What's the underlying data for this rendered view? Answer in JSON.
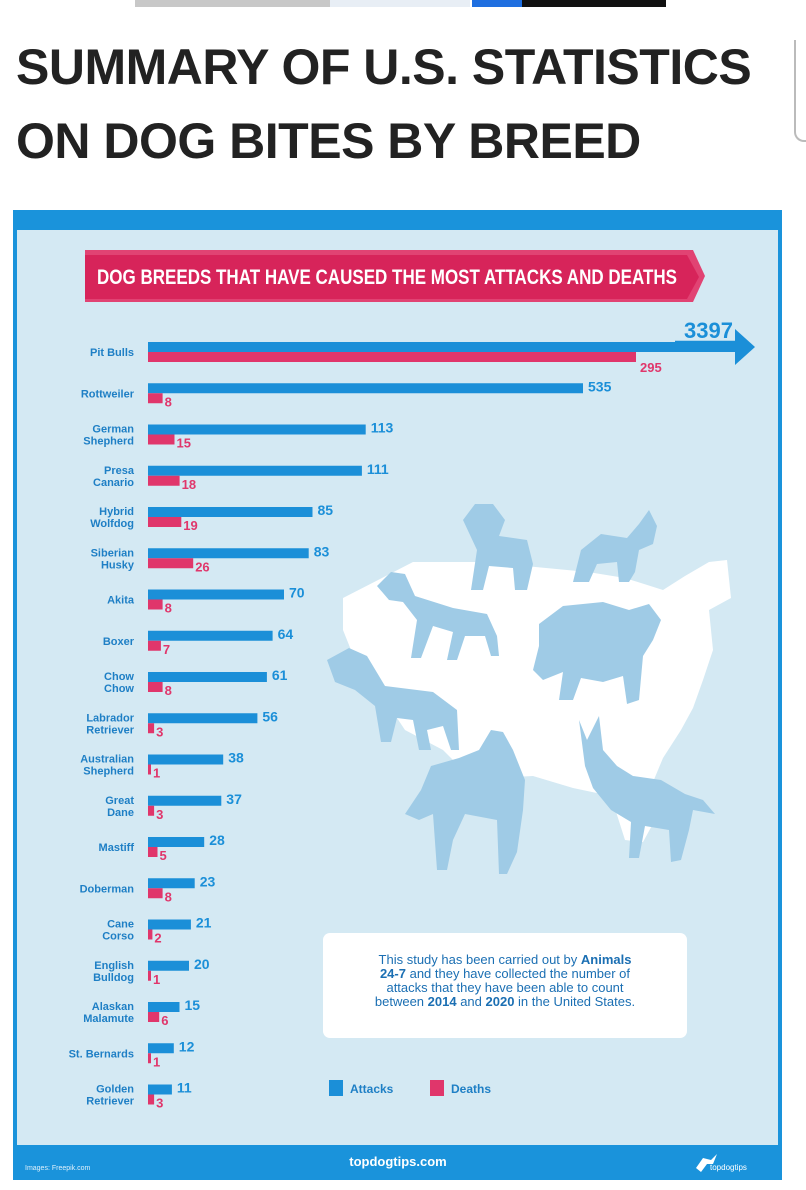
{
  "page": {
    "title_line1": "SUMMARY OF U.S. STATISTICS",
    "title_line2": "ON DOG BITES BY BREED"
  },
  "infographic": {
    "banner": "DOG BREEDS THAT HAVE CAUSED THE MOST ATTACKS AND DEATHS",
    "note": {
      "parts": [
        {
          "text": "This study has been carried out by ",
          "bold": false
        },
        {
          "text": "Animals",
          "bold": true
        },
        {
          "text": "24-7",
          "bold": true
        },
        {
          "text": " and they have collected the number of",
          "bold": false
        },
        {
          "text": "attacks that they have been able to count",
          "bold": false
        },
        {
          "text": "between ",
          "bold": false
        },
        {
          "text": "2014",
          "bold": true
        },
        {
          "text": " and ",
          "bold": false
        },
        {
          "text": "2020",
          "bold": true
        },
        {
          "text": " in the United States.",
          "bold": false
        }
      ]
    },
    "footer": {
      "site": "topdogtips.com",
      "credit": "Images: Freepik.com",
      "logo_text": "topdogtips"
    },
    "colors": {
      "attacks": "#1b8fd8",
      "deaths": "#e0366b",
      "background": "#d4e9f3",
      "frame": "#1a93db",
      "silhouette": "#9fcbe6",
      "map": "#ffffff",
      "label": "#1e7fc5"
    }
  },
  "chart_data": {
    "type": "bar",
    "orientation": "horizontal",
    "title": "DOG BREEDS THAT HAVE CAUSED THE MOST ATTACKS AND DEATHS",
    "categories": [
      [
        "Pit Bulls"
      ],
      [
        "Rottweiler"
      ],
      [
        "German",
        "Shepherd"
      ],
      [
        "Presa",
        "Canario"
      ],
      [
        "Hybrid",
        "Wolfdog"
      ],
      [
        "Siberian",
        "Husky"
      ],
      [
        "Akita"
      ],
      [
        "Boxer"
      ],
      [
        "Chow",
        "Chow"
      ],
      [
        "Labrador",
        "Retriever"
      ],
      [
        "Australian",
        "Shepherd"
      ],
      [
        "Great",
        "Dane"
      ],
      [
        "Mastiff"
      ],
      [
        "Doberman"
      ],
      [
        "Cane",
        "Corso"
      ],
      [
        "English",
        "Bulldog"
      ],
      [
        "Alaskan",
        "Malamute"
      ],
      [
        "St. Bernards"
      ],
      [
        "Golden",
        "Retriever"
      ]
    ],
    "series": [
      {
        "name": "Attacks",
        "color": "#1b8fd8",
        "values": [
          3397,
          535,
          113,
          111,
          85,
          83,
          70,
          64,
          61,
          56,
          38,
          37,
          28,
          23,
          21,
          20,
          15,
          12,
          11
        ]
      },
      {
        "name": "Deaths",
        "color": "#e0366b",
        "values": [
          295,
          8,
          15,
          18,
          19,
          26,
          8,
          7,
          8,
          3,
          1,
          3,
          5,
          8,
          2,
          1,
          6,
          1,
          3
        ]
      }
    ],
    "legend": {
      "position": "bottom",
      "items": [
        "Attacks",
        "Deaths"
      ]
    },
    "scale": "non-linear",
    "grid": false
  }
}
